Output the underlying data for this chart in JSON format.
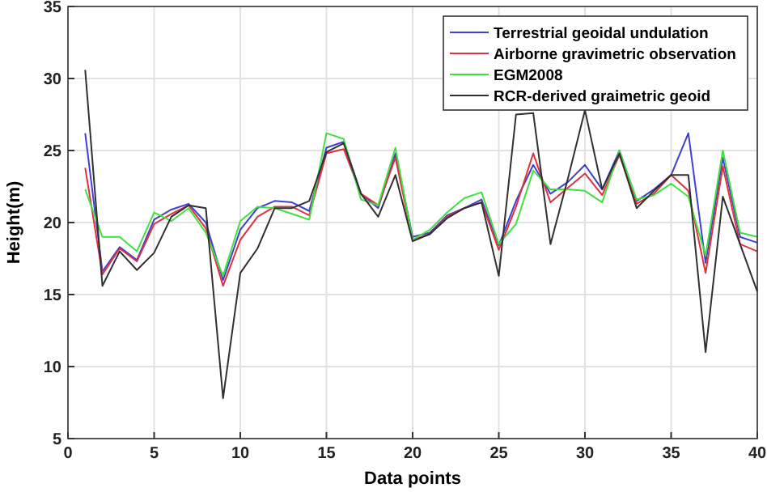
{
  "chart_data": {
    "type": "line",
    "xlabel": "Data points",
    "ylabel": "Height(m)",
    "x": [
      1,
      2,
      3,
      4,
      5,
      6,
      7,
      8,
      9,
      10,
      11,
      12,
      13,
      14,
      15,
      16,
      17,
      18,
      19,
      20,
      21,
      22,
      23,
      24,
      25,
      26,
      27,
      28,
      29,
      30,
      31,
      32,
      33,
      34,
      35,
      36,
      37,
      38,
      39,
      40
    ],
    "series": [
      {
        "name": "Terrestrial geoidal undulation",
        "color": "#4040d0",
        "values": [
          26.2,
          16.6,
          18.3,
          17.4,
          20.2,
          20.9,
          21.3,
          20.0,
          16.0,
          19.5,
          21.0,
          21.5,
          21.4,
          20.8,
          25.2,
          25.6,
          22.0,
          21.0,
          24.8,
          19.0,
          19.3,
          20.5,
          21.0,
          21.6,
          18.4,
          21.5,
          24.0,
          22.0,
          22.8,
          24.0,
          22.3,
          25.0,
          21.5,
          22.3,
          23.3,
          26.2,
          17.2,
          24.5,
          19.0,
          18.6
        ]
      },
      {
        "name": "Airborne gravimetric observation",
        "color": "#e03040",
        "values": [
          23.8,
          16.4,
          18.2,
          17.3,
          19.9,
          20.6,
          21.2,
          19.6,
          15.6,
          18.8,
          20.4,
          21.1,
          21.1,
          20.5,
          24.8,
          25.1,
          22.0,
          21.2,
          24.5,
          18.8,
          19.2,
          20.4,
          21.0,
          21.4,
          18.1,
          21.1,
          24.8,
          21.4,
          22.4,
          23.4,
          21.9,
          24.7,
          21.3,
          22.0,
          23.3,
          22.2,
          16.5,
          23.9,
          18.5,
          18.0
        ]
      },
      {
        "name": "EGM2008",
        "color": "#40e040",
        "values": [
          22.3,
          19.0,
          19.0,
          18.0,
          20.7,
          20.1,
          21.0,
          19.3,
          16.3,
          20.1,
          21.1,
          21.0,
          20.6,
          20.2,
          26.2,
          25.8,
          21.6,
          21.2,
          25.2,
          18.8,
          19.5,
          20.7,
          21.7,
          22.1,
          18.5,
          19.9,
          23.6,
          22.3,
          22.3,
          22.2,
          21.4,
          25.0,
          21.6,
          21.9,
          22.7,
          21.8,
          17.7,
          25.0,
          19.3,
          19.0
        ]
      },
      {
        "name": "RCR-derived graimetric geoid",
        "color": "#303030",
        "values": [
          30.6,
          15.6,
          18.0,
          16.7,
          17.9,
          20.4,
          21.2,
          21.0,
          7.8,
          16.5,
          18.2,
          21.0,
          21.0,
          21.5,
          24.9,
          25.5,
          22.0,
          20.4,
          23.3,
          18.7,
          19.2,
          20.3,
          21.0,
          21.4,
          16.3,
          27.5,
          27.6,
          18.5,
          23.0,
          27.8,
          22.3,
          24.8,
          21.0,
          22.2,
          23.3,
          23.3,
          11.0,
          21.8,
          18.5,
          15.2
        ]
      }
    ],
    "xlim": [
      0,
      40
    ],
    "xticks": [
      0,
      5,
      10,
      15,
      20,
      25,
      30,
      35,
      40
    ],
    "ylim": [
      5,
      35
    ],
    "yticks": [
      5,
      10,
      15,
      20,
      25,
      30,
      35
    ],
    "grid": true,
    "legend": "top right",
    "marker": "none",
    "line_style": "solid"
  }
}
